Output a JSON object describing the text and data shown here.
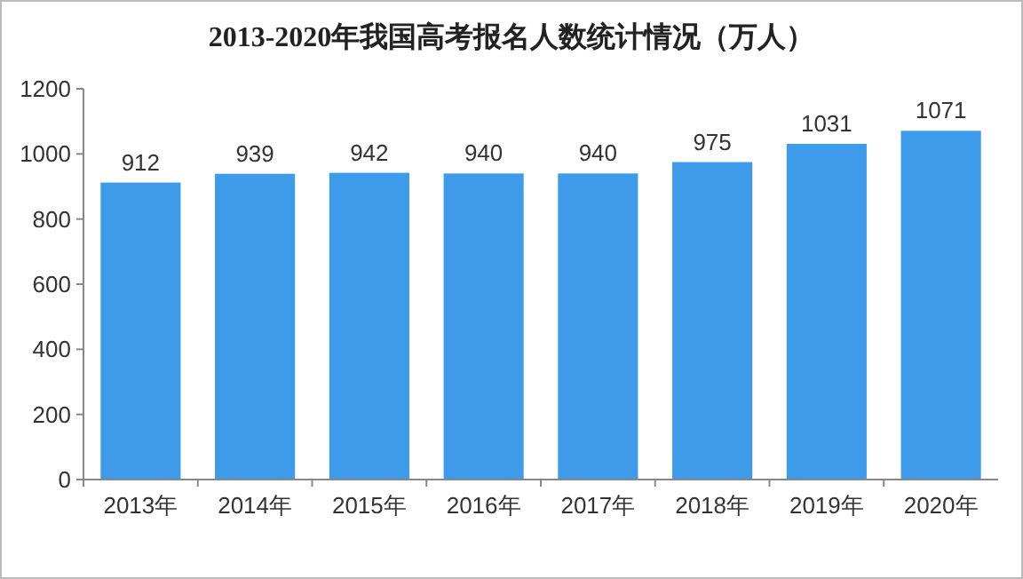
{
  "chart_data": {
    "type": "bar",
    "title": "2013-2020年我国高考报名人数统计情况（万人）",
    "categories": [
      "2013年",
      "2014年",
      "2015年",
      "2016年",
      "2017年",
      "2018年",
      "2019年",
      "2020年"
    ],
    "values": [
      912,
      939,
      942,
      940,
      940,
      975,
      1031,
      1071
    ],
    "color": "#3d9be9",
    "ylim": [
      0,
      1200
    ],
    "yticks": [
      0,
      200,
      400,
      600,
      800,
      1000,
      1200
    ],
    "data_labels": true
  }
}
